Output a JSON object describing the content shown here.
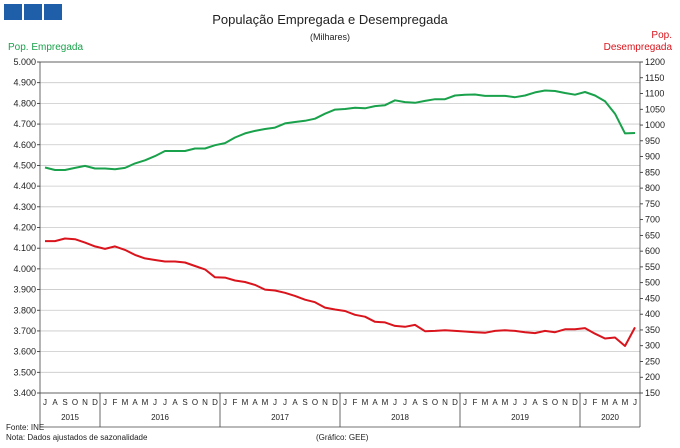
{
  "chart_data": {
    "type": "line",
    "title": "População Empregada e Desempregada",
    "subtitle": "(Milhares)",
    "left_axis": {
      "label": "Pop. Empregada",
      "min": 3400,
      "max": 5000,
      "step": 100,
      "ticks": [
        "3.400",
        "3.500",
        "3.600",
        "3.700",
        "3.800",
        "3.900",
        "4.000",
        "4.100",
        "4.200",
        "4.300",
        "4.400",
        "4.500",
        "4.600",
        "4.700",
        "4.800",
        "4.900",
        "5.000"
      ]
    },
    "right_axis": {
      "label_line1": "Pop.",
      "label_line2": "Desempregada",
      "min": 150,
      "max": 1200,
      "step": 50,
      "ticks": [
        "150",
        "200",
        "250",
        "300",
        "350",
        "400",
        "450",
        "500",
        "550",
        "600",
        "650",
        "700",
        "750",
        "800",
        "850",
        "900",
        "950",
        "1000",
        "1050",
        "1100",
        "1150",
        "1200"
      ]
    },
    "month_labels": [
      "J",
      "A",
      "S",
      "O",
      "N",
      "D",
      "J",
      "F",
      "M",
      "A",
      "M",
      "J",
      "J",
      "A",
      "S",
      "O",
      "N",
      "D",
      "J",
      "F",
      "M",
      "A",
      "M",
      "J",
      "J",
      "A",
      "S",
      "O",
      "N",
      "D",
      "J",
      "F",
      "M",
      "A",
      "M",
      "J",
      "J",
      "A",
      "S",
      "O",
      "N",
      "D",
      "J",
      "F",
      "M",
      "A",
      "M",
      "J",
      "J",
      "A",
      "S",
      "O",
      "N",
      "D",
      "J",
      "F",
      "M",
      "A",
      "M",
      "J"
    ],
    "year_labels": [
      "2015",
      "2016",
      "2017",
      "2018",
      "2019",
      "2020"
    ],
    "series": [
      {
        "name": "Pop. Empregada",
        "axis": "left",
        "color": "#1aa14b",
        "values": [
          4490,
          4478,
          4478,
          4488,
          4498,
          4485,
          4485,
          4482,
          4488,
          4510,
          4525,
          4545,
          4570,
          4570,
          4570,
          4582,
          4582,
          4598,
          4608,
          4635,
          4655,
          4667,
          4676,
          4683,
          4703,
          4710,
          4716,
          4726,
          4750,
          4770,
          4773,
          4779,
          4776,
          4787,
          4791,
          4815,
          4806,
          4803,
          4812,
          4820,
          4820,
          4838,
          4842,
          4843,
          4836,
          4836,
          4836,
          4830,
          4838,
          4853,
          4862,
          4860,
          4850,
          4842,
          4855,
          4838,
          4810,
          4750,
          4655,
          4657
        ]
      },
      {
        "name": "Pop. Desempregada",
        "axis": "right",
        "color": "#d9141c",
        "values": [
          632,
          632,
          640,
          638,
          627,
          615,
          607,
          615,
          604,
          588,
          577,
          572,
          567,
          567,
          564,
          553,
          542,
          517,
          516,
          507,
          502,
          493,
          478,
          475,
          468,
          458,
          446,
          438,
          421,
          415,
          410,
          398,
          392,
          376,
          374,
          363,
          360,
          366,
          346,
          347,
          349,
          347,
          345,
          343,
          341,
          347,
          349,
          347,
          343,
          340,
          347,
          343,
          352,
          352,
          356,
          338,
          323,
          326,
          299,
          358
        ]
      }
    ],
    "footnotes": {
      "source": "Fonte: INE",
      "note": "Nota: Dados ajustados de sazonalidade",
      "credit": "(Gráfico: GEE)"
    }
  }
}
